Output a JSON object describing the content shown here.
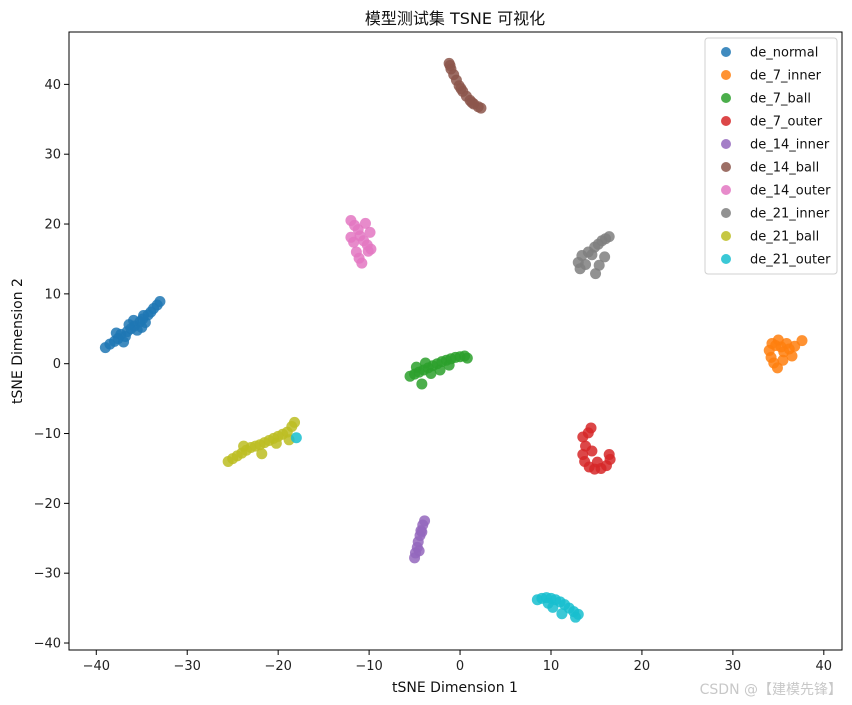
{
  "chart_data": {
    "type": "scatter",
    "title": "模型测试集 TSNE 可视化",
    "xlabel": "tSNE Dimension 1",
    "ylabel": "tSNE Dimension 2",
    "xlim": [
      -43,
      42
    ],
    "ylim": [
      -41,
      47.5
    ],
    "xticks": [
      -40,
      -30,
      -20,
      -10,
      0,
      10,
      20,
      30,
      40
    ],
    "yticks": [
      -40,
      -30,
      -20,
      -10,
      0,
      10,
      20,
      30,
      40
    ],
    "grid": false,
    "legend_position": "top-right",
    "series": [
      {
        "name": "de_normal",
        "color": "#1f77b4",
        "points": [
          [
            -39,
            2.3
          ],
          [
            -38.5,
            2.8
          ],
          [
            -38,
            3.2
          ],
          [
            -37.6,
            3.6
          ],
          [
            -37.3,
            4.2
          ],
          [
            -37,
            3.1
          ],
          [
            -36.6,
            4.6
          ],
          [
            -36.2,
            5.0
          ],
          [
            -35.8,
            5.4
          ],
          [
            -35.5,
            4.8
          ],
          [
            -35.2,
            6.0
          ],
          [
            -34.9,
            6.4
          ],
          [
            -34.6,
            5.9
          ],
          [
            -34.3,
            7.0
          ],
          [
            -34,
            7.4
          ],
          [
            -33.7,
            7.9
          ],
          [
            -33.3,
            8.4
          ],
          [
            -33,
            8.9
          ],
          [
            -36.8,
            3.9
          ],
          [
            -35.9,
            6.2
          ],
          [
            -34.8,
            6.9
          ],
          [
            -37.8,
            4.4
          ],
          [
            -36.4,
            5.6
          ],
          [
            -35,
            5.2
          ]
        ]
      },
      {
        "name": "de_7_inner",
        "color": "#ff7f0e",
        "points": [
          [
            34,
            1.9
          ],
          [
            34.2,
            0.9
          ],
          [
            34.5,
            0.1
          ],
          [
            34.7,
            2.6
          ],
          [
            35,
            3.4
          ],
          [
            35.3,
            2.4
          ],
          [
            35.6,
            1.7
          ],
          [
            35.9,
            2.9
          ],
          [
            36.2,
            2.1
          ],
          [
            36.5,
            1.1
          ],
          [
            36.8,
            2.5
          ],
          [
            37.6,
            3.3
          ],
          [
            34.9,
            -0.6
          ],
          [
            35.5,
            0.5
          ],
          [
            34.3,
            2.9
          ]
        ]
      },
      {
        "name": "de_7_ball",
        "color": "#2ca02c",
        "points": [
          [
            -5.5,
            -1.8
          ],
          [
            -5,
            -1.5
          ],
          [
            -4.5,
            -1.2
          ],
          [
            -4,
            -0.9
          ],
          [
            -3.5,
            -0.6
          ],
          [
            -3,
            -0.3
          ],
          [
            -2.5,
            0
          ],
          [
            -2,
            0.3
          ],
          [
            -1.5,
            0.5
          ],
          [
            -1,
            0.7
          ],
          [
            -0.5,
            0.9
          ],
          [
            0,
            1.0
          ],
          [
            0.5,
            1.1
          ],
          [
            0.8,
            0.8
          ],
          [
            -4.2,
            -2.9
          ],
          [
            -3.2,
            -1.4
          ],
          [
            -2.2,
            -0.9
          ],
          [
            -1.2,
            -0.2
          ],
          [
            -4.8,
            -0.5
          ],
          [
            -3.8,
            0.1
          ]
        ]
      },
      {
        "name": "de_7_outer",
        "color": "#d62728",
        "points": [
          [
            13.5,
            -10.5
          ],
          [
            13.8,
            -11.8
          ],
          [
            13.5,
            -13
          ],
          [
            13.7,
            -14
          ],
          [
            14.2,
            -14.8
          ],
          [
            14.8,
            -15.1
          ],
          [
            15.5,
            -15
          ],
          [
            16.1,
            -14.6
          ],
          [
            16.5,
            -13.7
          ],
          [
            16.4,
            -13
          ],
          [
            14.4,
            -9.2
          ],
          [
            14.1,
            -9.9
          ],
          [
            15.1,
            -14.1
          ],
          [
            14.5,
            -12.5
          ]
        ]
      },
      {
        "name": "de_14_inner",
        "color": "#9467bd",
        "points": [
          [
            -5,
            -27.8
          ],
          [
            -4.9,
            -27.1
          ],
          [
            -4.7,
            -26.3
          ],
          [
            -4.6,
            -25.5
          ],
          [
            -4.4,
            -24.6
          ],
          [
            -4.3,
            -23.9
          ],
          [
            -4.1,
            -23.1
          ],
          [
            -3.9,
            -22.5
          ],
          [
            -4.5,
            -26.8
          ],
          [
            -4.2,
            -24.1
          ]
        ]
      },
      {
        "name": "de_14_ball",
        "color": "#8c564b",
        "points": [
          [
            -1.2,
            43
          ],
          [
            -1,
            42.2
          ],
          [
            -0.7,
            41.4
          ],
          [
            -0.4,
            40.6
          ],
          [
            -0.1,
            39.8
          ],
          [
            0.3,
            39.0
          ],
          [
            0.7,
            38.3
          ],
          [
            1.1,
            37.7
          ],
          [
            1.5,
            37.2
          ],
          [
            2,
            36.8
          ],
          [
            2.3,
            36.6
          ],
          [
            -1.1,
            42.7
          ],
          [
            0.1,
            39.4
          ],
          [
            1.3,
            37.4
          ]
        ]
      },
      {
        "name": "de_14_outer",
        "color": "#e377c2",
        "points": [
          [
            -12,
            20.5
          ],
          [
            -11.6,
            19.8
          ],
          [
            -11.2,
            19.2
          ],
          [
            -11,
            18.3
          ],
          [
            -10.6,
            17.6
          ],
          [
            -10.2,
            17.0
          ],
          [
            -9.8,
            16.4
          ],
          [
            -11.4,
            16.0
          ],
          [
            -11.1,
            15.1
          ],
          [
            -10.8,
            14.4
          ],
          [
            -10.4,
            20.1
          ],
          [
            -9.9,
            18.8
          ],
          [
            -12,
            18.1
          ],
          [
            -10.1,
            16.1
          ],
          [
            -11.7,
            17.4
          ]
        ]
      },
      {
        "name": "de_21_inner",
        "color": "#7f7f7f",
        "points": [
          [
            13,
            14.5
          ],
          [
            13.4,
            15.5
          ],
          [
            13.8,
            14.2
          ],
          [
            14.1,
            16.0
          ],
          [
            14.5,
            15.6
          ],
          [
            14.8,
            16.7
          ],
          [
            15.2,
            17.1
          ],
          [
            15.6,
            17.6
          ],
          [
            16,
            17.9
          ],
          [
            16.4,
            18.2
          ],
          [
            14.9,
            12.9
          ],
          [
            15.3,
            14.1
          ],
          [
            13.2,
            13.6
          ],
          [
            15.9,
            15.3
          ]
        ]
      },
      {
        "name": "de_21_ball",
        "color": "#bcbd22",
        "points": [
          [
            -25.5,
            -14
          ],
          [
            -25,
            -13.6
          ],
          [
            -24.5,
            -13.2
          ],
          [
            -24,
            -12.8
          ],
          [
            -23.5,
            -12.4
          ],
          [
            -23,
            -12.0
          ],
          [
            -22.5,
            -11.8
          ],
          [
            -22,
            -11.6
          ],
          [
            -21.5,
            -11.3
          ],
          [
            -21,
            -11.0
          ],
          [
            -20.5,
            -10.7
          ],
          [
            -20,
            -10.4
          ],
          [
            -19.5,
            -10.1
          ],
          [
            -19,
            -9.8
          ],
          [
            -18.5,
            -9.0
          ],
          [
            -18.2,
            -8.4
          ],
          [
            -23.8,
            -11.8
          ],
          [
            -21.8,
            -12.9
          ],
          [
            -18.8,
            -10.9
          ],
          [
            -20.2,
            -11.4
          ]
        ]
      },
      {
        "name": "de_21_outer",
        "color": "#17becf",
        "points": [
          [
            -18,
            -10.6
          ],
          [
            8.5,
            -33.8
          ],
          [
            9,
            -33.6
          ],
          [
            9.5,
            -33.5
          ],
          [
            10,
            -33.6
          ],
          [
            10.5,
            -33.8
          ],
          [
            11,
            -34.1
          ],
          [
            11.5,
            -34.5
          ],
          [
            12,
            -35
          ],
          [
            12.5,
            -35.5
          ],
          [
            13,
            -35.9
          ],
          [
            11.2,
            -35.8
          ],
          [
            12.7,
            -36.3
          ],
          [
            10.2,
            -34.9
          ],
          [
            9.7,
            -34.3
          ]
        ]
      }
    ]
  },
  "watermark": "CSDN @【建模先锋】"
}
